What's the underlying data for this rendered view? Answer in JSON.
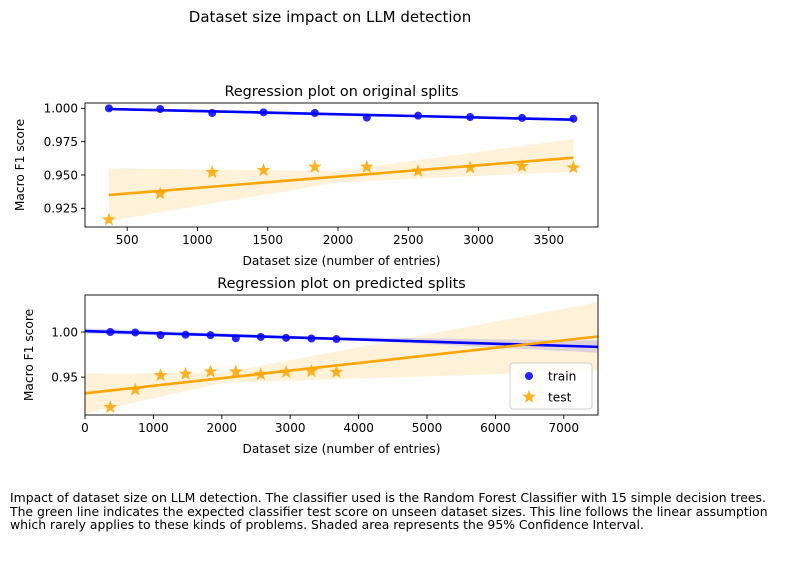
{
  "figure": {
    "title": "Dataset size impact on LLM detection",
    "caption": "Impact of dataset size on LLM detection. The classifier used is the Random Forest Classifier with 15 simple decision trees. The green line indicates the expected classifier test score on unseen dataset sizes. This line follows the linear assumption which rarely applies to these kinds of problems. Shaded area represents the 95% Confidence Interval."
  },
  "chart_data": [
    {
      "type": "scatter",
      "title": "Regression plot on original splits",
      "xlabel": "Dataset size (number of entries)",
      "ylabel": "Macro F1 score",
      "xlim": [
        200,
        3850
      ],
      "ylim": [
        0.911,
        1.004
      ],
      "xticks": [
        500,
        1000,
        1500,
        2000,
        2500,
        3000,
        3500
      ],
      "yticks": [
        0.925,
        0.95,
        0.975,
        1.0
      ],
      "ytick_labels": [
        "0.925",
        "0.950",
        "0.975",
        "1.000"
      ],
      "grid": false,
      "series": [
        {
          "name": "train",
          "marker": "circle",
          "color": "#0000ff",
          "x": [
            370,
            735,
            1105,
            1470,
            1835,
            2205,
            2570,
            2940,
            3310,
            3675
          ],
          "y": [
            1.0,
            0.9995,
            0.9965,
            0.997,
            0.9965,
            0.993,
            0.9945,
            0.9935,
            0.9928,
            0.9922
          ],
          "fit": {
            "x": [
              370,
              3675
            ],
            "y": [
              0.9995,
              0.9915
            ]
          },
          "ci": {
            "x": [
              370,
              3675
            ],
            "upper": [
              0.9995,
              0.9925
            ],
            "lower": [
              0.9985,
              0.9905
            ]
          }
        },
        {
          "name": "test",
          "marker": "star",
          "color": "#ffa500",
          "x": [
            370,
            735,
            1105,
            1470,
            1835,
            2205,
            2570,
            2940,
            3310,
            3675
          ],
          "y": [
            0.9165,
            0.936,
            0.952,
            0.9535,
            0.956,
            0.956,
            0.953,
            0.9555,
            0.9565,
            0.9555
          ],
          "fit": {
            "x": [
              370,
              3675
            ],
            "y": [
              0.935,
              0.963
            ]
          },
          "ci": {
            "x": [
              370,
              2000,
              3675
            ],
            "upper": [
              0.955,
              0.953,
              0.977
            ],
            "lower": [
              0.9155,
              0.9445,
              0.9525
            ]
          }
        }
      ]
    },
    {
      "type": "scatter",
      "title": "Regression plot on predicted splits",
      "xlabel": "Dataset size (number of entries)",
      "ylabel": "Macro F1 score",
      "xlim": [
        0,
        7500
      ],
      "ylim": [
        0.908,
        1.041
      ],
      "xticks": [
        0,
        1000,
        2000,
        3000,
        4000,
        5000,
        6000,
        7000
      ],
      "yticks": [
        0.95,
        1.0
      ],
      "ytick_labels": [
        "0.95",
        "1.00"
      ],
      "grid": false,
      "legend": {
        "loc": "lower-right",
        "entries": [
          "train",
          "test"
        ]
      },
      "series": [
        {
          "name": "train",
          "marker": "circle",
          "color": "#0000ff",
          "x": [
            370,
            735,
            1105,
            1470,
            1835,
            2205,
            2570,
            2940,
            3310,
            3675
          ],
          "y": [
            1.0,
            0.9995,
            0.9965,
            0.997,
            0.9965,
            0.993,
            0.9945,
            0.9935,
            0.9928,
            0.9922
          ],
          "fit": {
            "x": [
              0,
              7500
            ],
            "y": [
              1.001,
              0.9835
            ]
          },
          "ci": {
            "x": [
              0,
              3500,
              7500
            ],
            "upper": [
              1.004,
              0.9945,
              0.9905
            ],
            "lower": [
              0.998,
              0.9925,
              0.977
            ]
          }
        },
        {
          "name": "test",
          "marker": "star",
          "color": "#ffa500",
          "x": [
            370,
            735,
            1105,
            1470,
            1835,
            2205,
            2570,
            2940,
            3310,
            3675
          ],
          "y": [
            0.9165,
            0.936,
            0.952,
            0.9535,
            0.956,
            0.956,
            0.953,
            0.9555,
            0.9565,
            0.9555
          ],
          "fit": {
            "x": [
              0,
              7500
            ],
            "y": [
              0.932,
              0.995
            ]
          },
          "ci": {
            "x": [
              0,
              2000,
              7500
            ],
            "upper": [
              0.954,
              0.9545,
              1.033
            ],
            "lower": [
              0.9095,
              0.9435,
              0.957
            ]
          }
        }
      ]
    }
  ]
}
